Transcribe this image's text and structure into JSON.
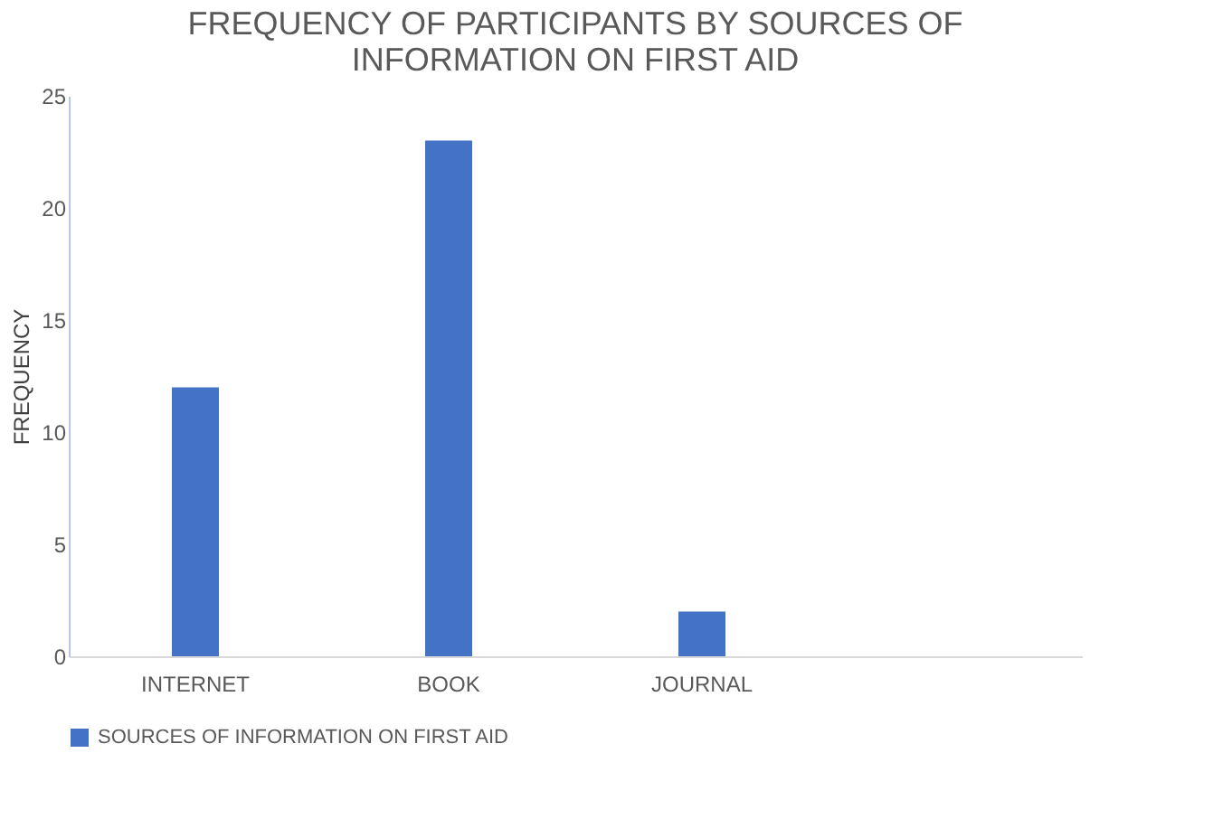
{
  "chart_data": {
    "type": "bar",
    "title": "FREQUENCY OF PARTICIPANTS BY SOURCES OF INFORMATION ON FIRST AID",
    "ylabel": "FREQUENCY",
    "categories": [
      "INTERNET",
      "BOOK",
      "JOURNAL",
      null
    ],
    "series": [
      {
        "name": "SOURCES OF INFORMATION ON FIRST AID",
        "color": "#4472c4",
        "values": [
          12,
          23,
          2,
          null
        ]
      }
    ],
    "ylim": [
      0,
      25
    ],
    "yticks": [
      0,
      5,
      10,
      15,
      20,
      25
    ],
    "grid": false,
    "legend": "bottom"
  }
}
